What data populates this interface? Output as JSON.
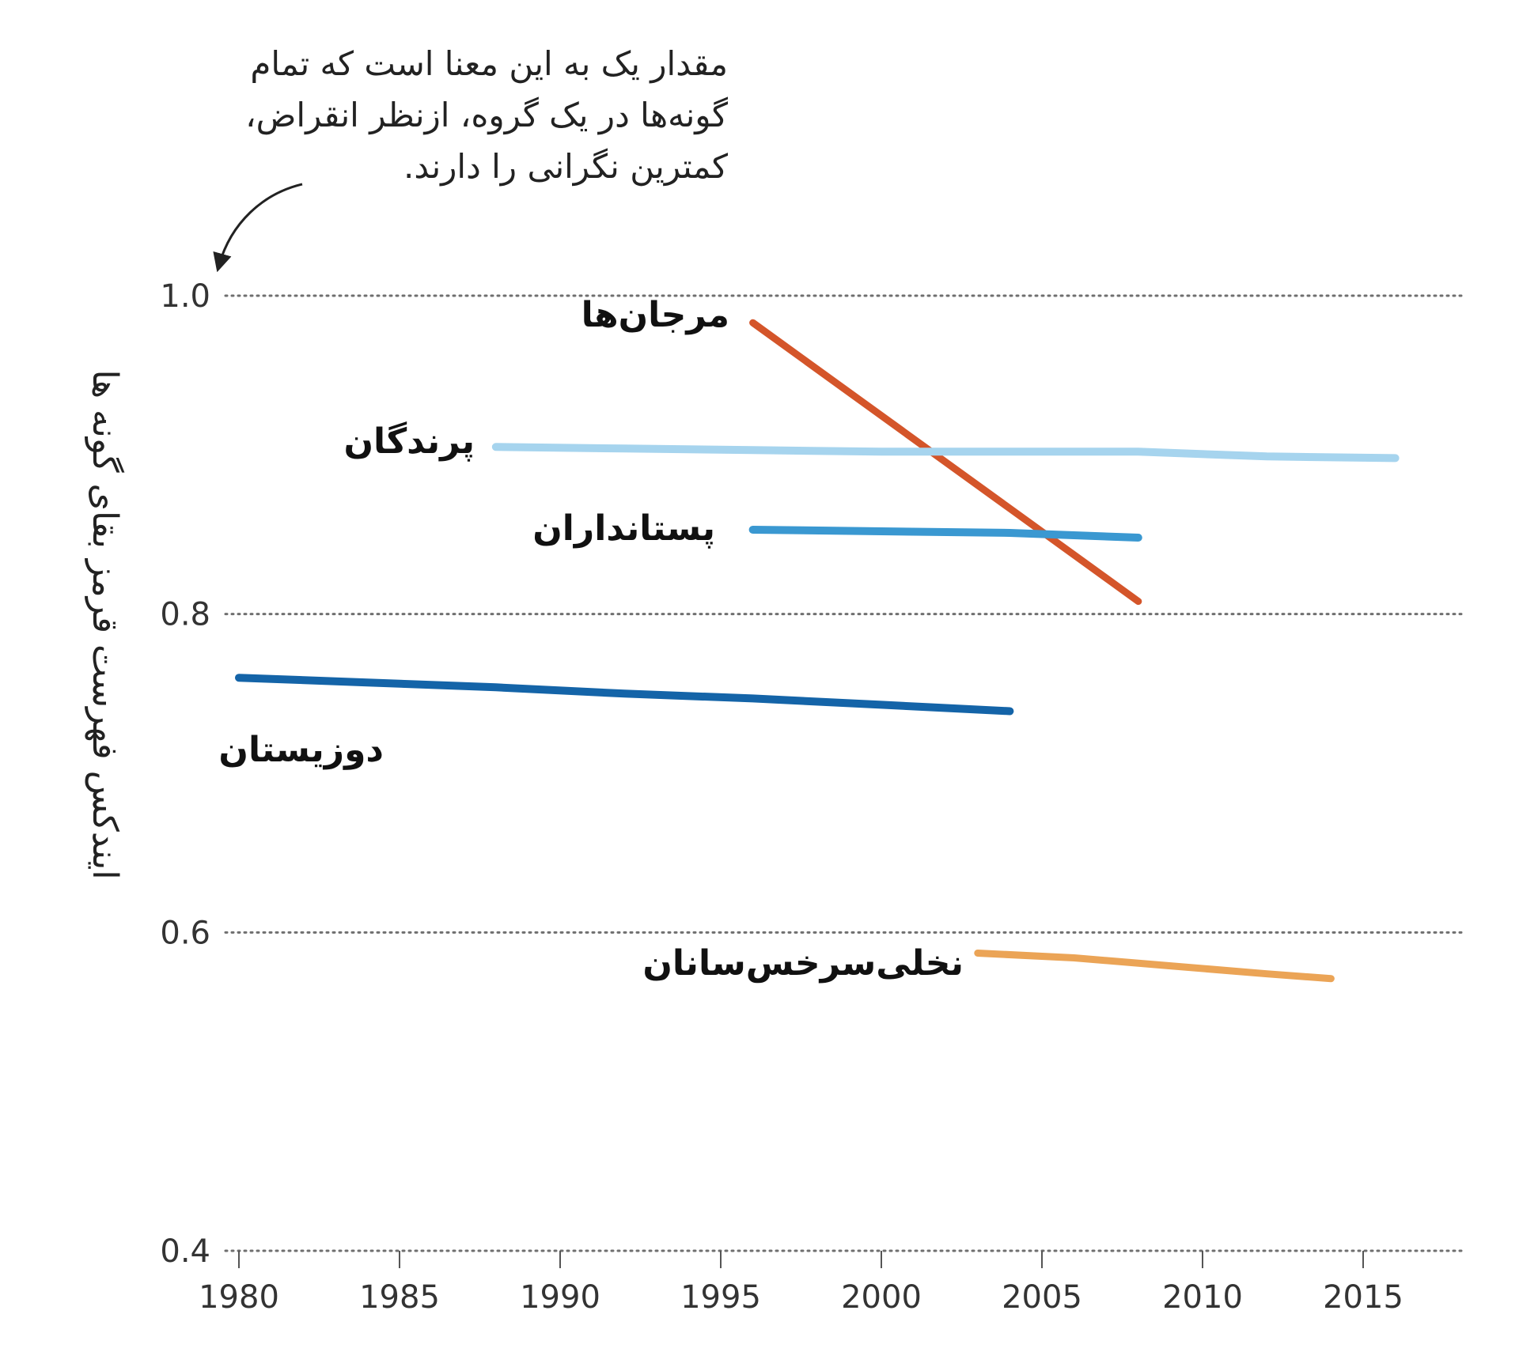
{
  "chart_data": {
    "type": "line",
    "title": "",
    "xlabel": "",
    "ylabel": "ایندکس فهرست قرمز بقای گونه ها",
    "xlim": [
      1980,
      2018
    ],
    "ylim": [
      0.4,
      1.0
    ],
    "x_ticks": [
      "1980",
      "1985",
      "1990",
      "1995",
      "2000",
      "2005",
      "2010",
      "2015"
    ],
    "y_ticks": [
      "0.4",
      "0.6",
      "0.8",
      "1.0"
    ],
    "grid": "horizontal dotted",
    "annotation": {
      "lines": [
        "مقدار یک به این معنا است که تمام",
        "گونه‌ها در یک گروه، ازنظر انقراض،",
        "کمترین نگرانی را دارند."
      ],
      "points_to": 1.0
    },
    "series": [
      {
        "name": "مرجان‌ها",
        "color": "#d4552a",
        "x": [
          1996,
          2008
        ],
        "values": [
          0.983,
          0.808
        ]
      },
      {
        "name": "پرندگان",
        "color": "#a6d4ee",
        "x": [
          1988,
          1992,
          1996,
          2000,
          2004,
          2008,
          2012,
          2016
        ],
        "values": [
          0.905,
          0.904,
          0.903,
          0.902,
          0.902,
          0.902,
          0.899,
          0.898
        ]
      },
      {
        "name": "پستانداران",
        "color": "#3a98d1",
        "x": [
          1996,
          2000,
          2004,
          2008
        ],
        "values": [
          0.853,
          0.852,
          0.851,
          0.848
        ]
      },
      {
        "name": "دوزیستان",
        "color": "#1464a8",
        "x": [
          1980,
          1984,
          1988,
          1992,
          1996,
          2000,
          2004
        ],
        "values": [
          0.76,
          0.757,
          0.754,
          0.75,
          0.747,
          0.743,
          0.739
        ]
      },
      {
        "name": "نخلی‌سرخس‌سانان",
        "color": "#eba456",
        "x": [
          2003,
          2006,
          2009,
          2012,
          2014
        ],
        "values": [
          0.587,
          0.584,
          0.579,
          0.574,
          0.571
        ]
      }
    ]
  }
}
